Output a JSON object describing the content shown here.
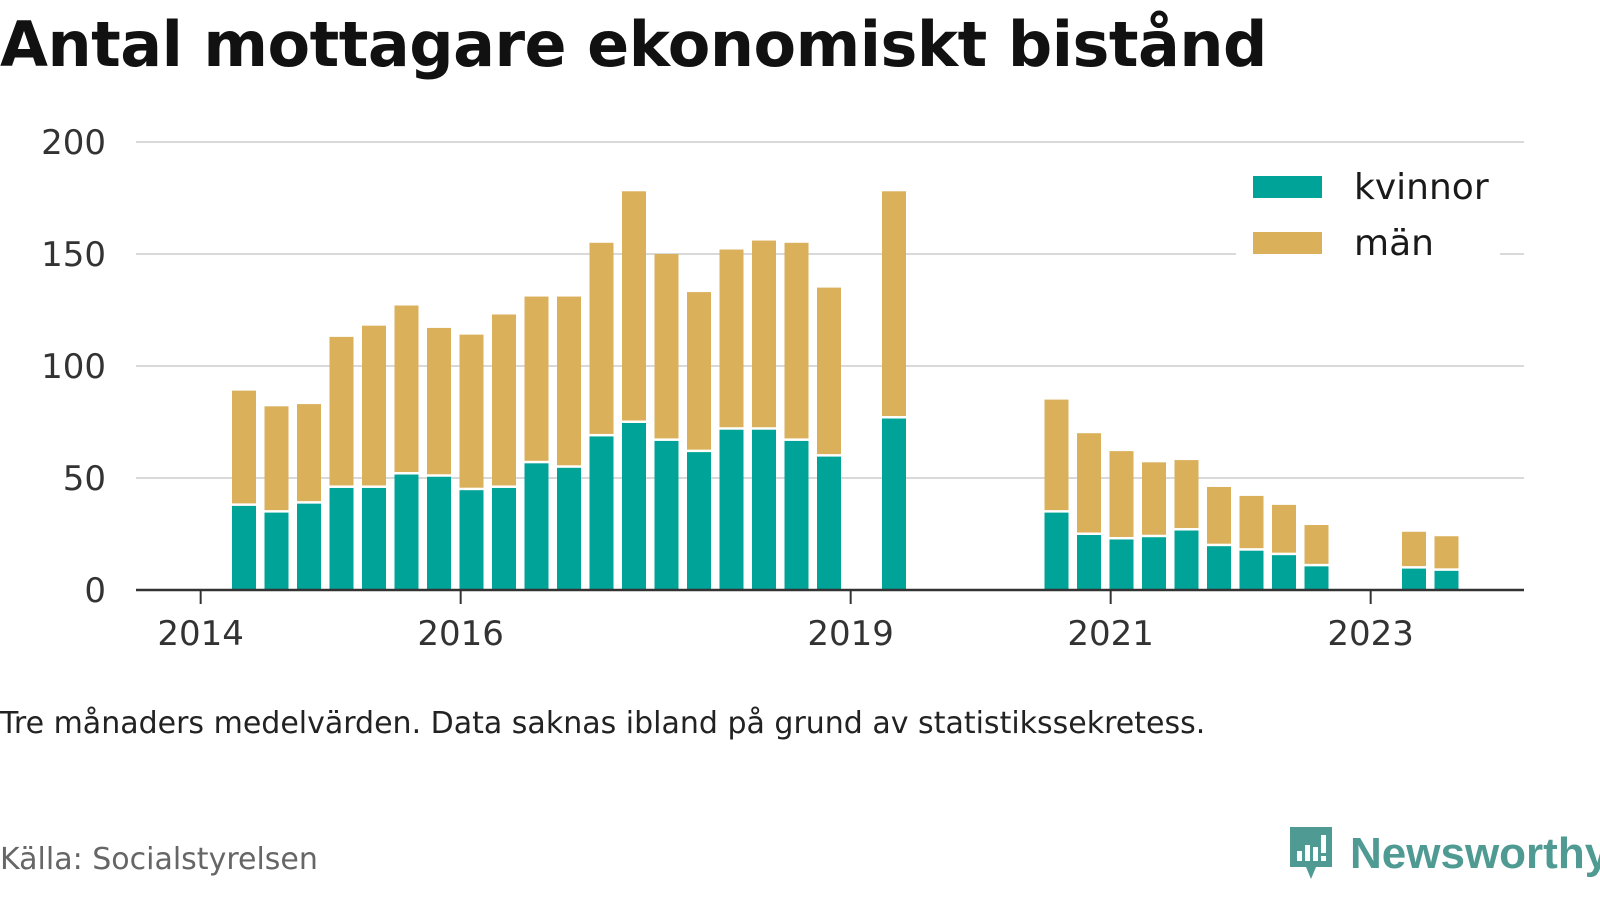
{
  "title": "Antal mottagare ekonomiskt bistånd",
  "note": "Tre månaders medelvärden. Data saknas ibland på grund av statistikssekretess.",
  "source": "Källa: Socialstyrelsen",
  "brand": {
    "name": "Newsworthy",
    "icon": "newsworthy-logo-icon",
    "color": "#4f9a92"
  },
  "chart_data": {
    "type": "bar",
    "stacked": true,
    "title": "Antal mottagare ekonomiskt bistånd",
    "xlabel": "",
    "ylabel": "",
    "ylim": [
      0,
      200
    ],
    "yticks": [
      0,
      50,
      100,
      150,
      200
    ],
    "xticks": [
      "2014",
      "2016",
      "2019",
      "2021",
      "2023"
    ],
    "grid": true,
    "legend_position": "top-right",
    "colors": {
      "kvinnor": "#00a398",
      "män": "#dbb05b"
    },
    "x": [
      "2014-05",
      "2014-08",
      "2014-11",
      "2015-02",
      "2015-05",
      "2015-08",
      "2015-11",
      "2016-02",
      "2016-05",
      "2016-08",
      "2016-11",
      "2017-02",
      "2017-05",
      "2017-08",
      "2017-11",
      "2018-02",
      "2018-05",
      "2018-08",
      "2018-11",
      "2019-02",
      "2019-05",
      "2019-08",
      "2019-11",
      "2020-02",
      "2020-05",
      "2020-08",
      "2020-11",
      "2021-02",
      "2021-05",
      "2021-08",
      "2021-11",
      "2022-02",
      "2022-05",
      "2022-08",
      "2022-11",
      "2023-02",
      "2023-05",
      "2023-08"
    ],
    "series": [
      {
        "name": "kvinnor",
        "values": [
          38,
          35,
          39,
          46,
          46,
          52,
          51,
          45,
          46,
          57,
          55,
          69,
          75,
          67,
          62,
          72,
          72,
          67,
          60,
          null,
          77,
          null,
          null,
          null,
          null,
          35,
          25,
          23,
          24,
          27,
          20,
          18,
          16,
          11,
          null,
          null,
          10,
          9
        ]
      },
      {
        "name": "män",
        "values": [
          51,
          47,
          44,
          67,
          72,
          75,
          66,
          69,
          77,
          74,
          76,
          86,
          103,
          83,
          71,
          80,
          84,
          88,
          75,
          null,
          101,
          null,
          null,
          null,
          null,
          50,
          45,
          39,
          33,
          31,
          26,
          24,
          22,
          18,
          null,
          null,
          16,
          15
        ]
      }
    ]
  }
}
